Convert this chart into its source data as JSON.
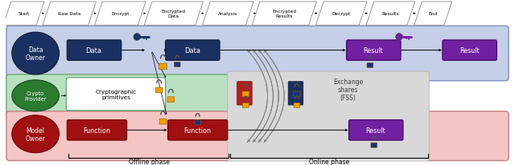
{
  "top_flow_labels": [
    "Start",
    "Raw Data",
    "Encrypt",
    "Encrypted\nData",
    "Analysis",
    "Encrypted\nResults",
    "Decrypt",
    "Results",
    "End"
  ],
  "bg_blue": "#c5cfe8",
  "bg_green": "#b8e0c0",
  "bg_red": "#f5c5c5",
  "row_blue_label_bg": "#1a3060",
  "row_green_label_bg": "#2a7a30",
  "row_red_label_bg": "#a01010",
  "data_box_blue": "#1a3060",
  "result_box_purple": "#7020a0",
  "function_box_red": "#a01010",
  "offline_phase_label": "Offline phase",
  "online_phase_label": "Online phase",
  "exchange_shares_label": "Exchange\nshares\n(FSS)",
  "row_labels": [
    "Data\nOwner",
    "Crypto\nProvider",
    "Model\nOwner"
  ],
  "lock_orange": "#f0a000",
  "lock_blue": "#203080",
  "lock_gray_shackle": "#505050"
}
